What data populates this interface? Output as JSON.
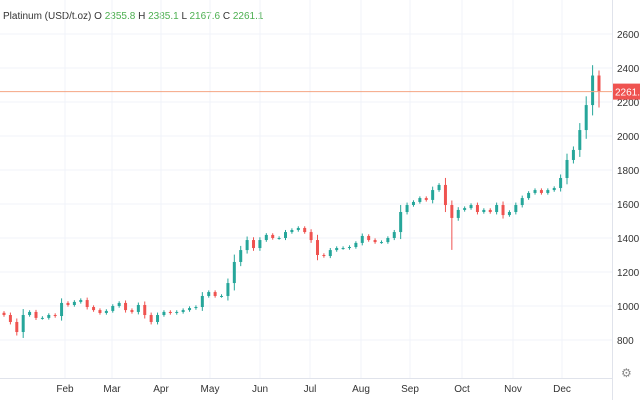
{
  "legend": {
    "symbol": "Platinum (USD/t.oz)",
    "o_label": "O",
    "o": "2355.8",
    "h_label": "H",
    "h": "2385.1",
    "l_label": "L",
    "l": "2167.6",
    "c_label": "C",
    "c": "2261.1"
  },
  "colors": {
    "up": "#26a69a",
    "down": "#ef5350",
    "price_line": "#f4a582",
    "grid": "#f0f3fa",
    "value_up": "#4caf50"
  },
  "settings_icon": "gear-icon",
  "chart_data": {
    "type": "candlestick",
    "title": "Platinum (USD/t.oz)",
    "x_ticks": [
      "Feb",
      "Mar",
      "Apr",
      "May",
      "Jun",
      "Jul",
      "Aug",
      "Sep",
      "Oct",
      "Nov",
      "Dec"
    ],
    "y_ticks": [
      800,
      1000,
      1200,
      1400,
      1600,
      1800,
      2000,
      2200,
      2400,
      2600
    ],
    "ylim": [
      640,
      2650
    ],
    "grid": true,
    "last_price": 2261.1,
    "last_price_label": "2261.1",
    "closes": [
      947,
      906,
      847,
      947,
      965,
      930,
      930,
      947,
      941,
      1018,
      1006,
      1024,
      1035,
      994,
      976,
      959,
      971,
      1000,
      1018,
      976,
      965,
      1006,
      947,
      906,
      947,
      965,
      959,
      965,
      976,
      988,
      994,
      1059,
      1082,
      1059,
      1059,
      1135,
      1259,
      1329,
      1388,
      1341,
      1388,
      1418,
      1400,
      1400,
      1435,
      1447,
      1459,
      1435,
      1388,
      1300,
      1294,
      1329,
      1341,
      1341,
      1347,
      1371,
      1412,
      1388,
      1376,
      1376,
      1400,
      1435,
      1553,
      1594,
      1612,
      1635,
      1624,
      1682,
      1712,
      1594,
      1518,
      1565,
      1576,
      1594,
      1553,
      1565,
      1553,
      1594,
      1535,
      1553,
      1594,
      1635,
      1665,
      1682,
      1665,
      1682,
      1694,
      1753,
      1859,
      1918,
      2035,
      2182,
      2355.8
    ],
    "last_candle": {
      "open": 2355.8,
      "high": 2385.1,
      "low": 2167.6,
      "close": 2261.1
    },
    "notable_lows": [
      {
        "index": 70,
        "low": 1330
      }
    ]
  }
}
